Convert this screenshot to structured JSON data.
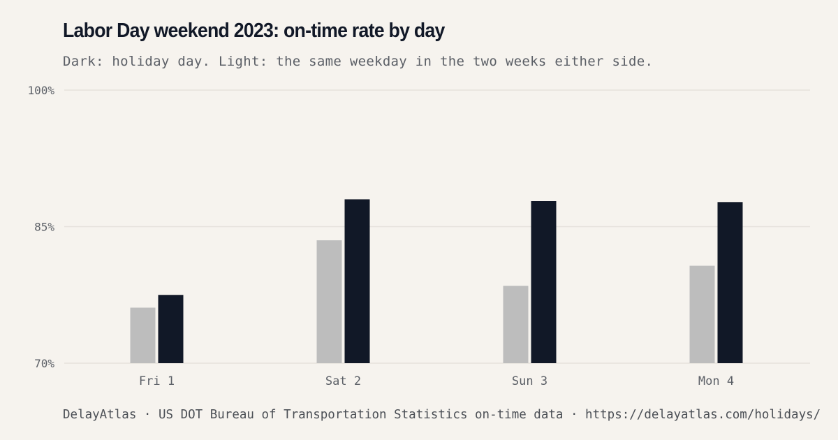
{
  "header": {
    "title": "Labor Day weekend 2023: on-time rate by day",
    "subtitle": "Dark: holiday day. Light: the same weekday in the two weeks either side."
  },
  "footer": {
    "source": "DelayAtlas · US DOT Bureau of Transportation Statistics on-time data · https://delayatlas.com/holidays/"
  },
  "colors": {
    "background": "#f6f3ee",
    "holiday": "#111827",
    "comparison": "#bdbdbd",
    "grid": "#e5e2dc",
    "axis_text": "#5b5f66"
  },
  "chart_data": {
    "type": "bar",
    "title": "Labor Day weekend 2023: on-time rate by day",
    "subtitle": "Dark: holiday day. Light: the same weekday in the two weeks either side.",
    "categories": [
      "Fri 1",
      "Sat 2",
      "Sun 3",
      "Mon 4"
    ],
    "series": [
      {
        "values": [
          76.1,
          83.5,
          78.5,
          80.7
        ],
        "color": "#bdbdbd"
      },
      {
        "values": [
          77.5,
          88.0,
          87.8,
          87.7
        ],
        "color": "#111827"
      }
    ],
    "yticks": [
      {
        "value": 70,
        "label": "70%"
      },
      {
        "value": 85,
        "label": "85%"
      },
      {
        "value": 100,
        "label": "100%"
      }
    ],
    "ylim": [
      70,
      100
    ],
    "xlabel": "",
    "ylabel": "",
    "grid": true,
    "legend": "none"
  }
}
